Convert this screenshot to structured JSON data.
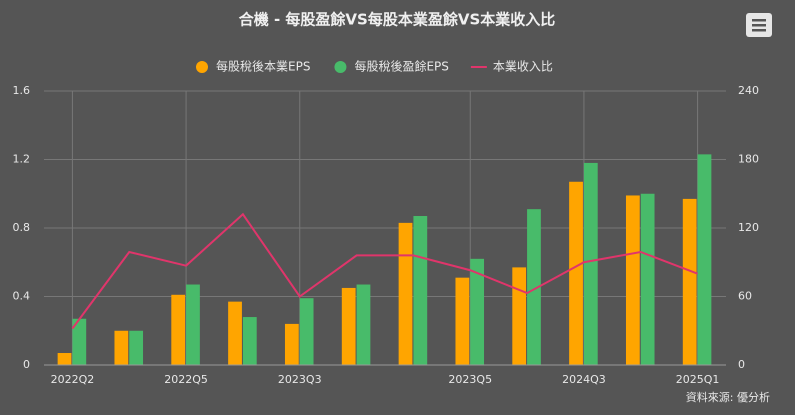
{
  "chart_data": {
    "type": "bar-line",
    "title": "合機 - 每股盈餘VS每股本業盈餘VS本業收入比",
    "categories": [
      "2022Q2",
      null,
      "2022Q5",
      null,
      "2023Q3",
      null,
      null,
      "2023Q5",
      null,
      "2024Q3",
      null,
      "2025Q1"
    ],
    "series": [
      {
        "name": "每股稅後本業EPS",
        "color": "#ffa500",
        "kind": "bar",
        "values": [
          0.07,
          0.2,
          0.41,
          0.37,
          0.24,
          0.45,
          0.83,
          0.51,
          0.57,
          1.07,
          0.99,
          0.97
        ]
      },
      {
        "name": "每股稅後盈餘EPS",
        "color": "#48bb6a",
        "kind": "bar",
        "values": [
          0.27,
          0.2,
          0.47,
          0.28,
          0.39,
          0.47,
          0.87,
          0.62,
          0.91,
          1.18,
          1.0,
          1.23
        ]
      },
      {
        "name": "本業收入比",
        "color": "#e0356b",
        "kind": "line",
        "axis": "y2",
        "values": [
          32,
          99,
          87,
          132,
          60,
          96,
          96,
          83,
          63,
          90,
          99,
          80
        ]
      }
    ],
    "ylim": [
      0,
      1.6
    ],
    "yticks": [
      0,
      0.4,
      0.8,
      1.2,
      1.6
    ],
    "y2lim": [
      0,
      240
    ],
    "y2ticks": [
      0,
      60,
      120,
      180,
      240
    ],
    "grid": true,
    "legend": "top",
    "source": "資料來源: 優分析"
  }
}
